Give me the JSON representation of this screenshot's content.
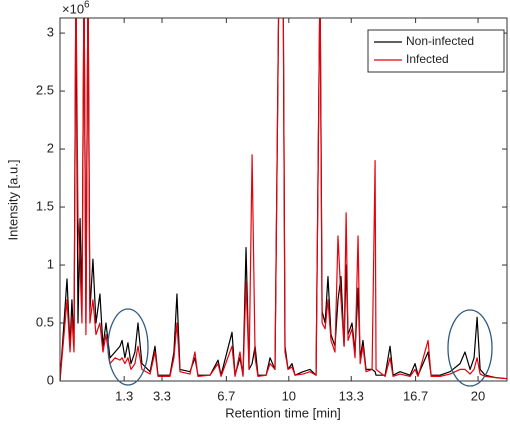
{
  "chart_data": {
    "type": "line",
    "x_label": "Retention time [min]",
    "y_label": "Intensity [a.u.]",
    "y_multiplier": {
      "base": "×10",
      "power": "6"
    },
    "xlim": [
      -2.09,
      21.53
    ],
    "ylim": [
      0,
      3.13
    ],
    "xticks": [
      1.3,
      3.3,
      6.7,
      10,
      13.3,
      16.7,
      20
    ],
    "yticks": [
      0,
      0.5,
      1,
      1.5,
      2,
      2.5,
      3
    ],
    "legend": "upper right",
    "x": [
      -2.09,
      -1.72,
      -1.56,
      -1.46,
      -1.35,
      -1.25,
      -1.14,
      -1.03,
      -0.93,
      -0.82,
      -0.72,
      -0.61,
      -0.51,
      -0.35,
      -0.19,
      0.02,
      0.18,
      0.34,
      0.55,
      0.82,
      1.08,
      1.19,
      1.34,
      1.5,
      1.66,
      1.87,
      2.03,
      2.24,
      2.67,
      2.93,
      3.09,
      3.72,
      3.93,
      4.09,
      4.25,
      4.78,
      5.04,
      5.2,
      5.84,
      6.26,
      6.42,
      7.0,
      7.16,
      7.42,
      7.58,
      7.74,
      7.9,
      8.06,
      8.22,
      8.37,
      8.8,
      9.01,
      9.27,
      9.48,
      9.7,
      9.8,
      9.96,
      10.17,
      10.33,
      10.75,
      11.12,
      11.44,
      11.65,
      11.76,
      11.92,
      12.07,
      12.23,
      12.44,
      12.6,
      12.76,
      12.92,
      13.03,
      13.13,
      13.34,
      13.5,
      13.66,
      13.77,
      13.92,
      14.08,
      14.4,
      14.56,
      14.61,
      15.09,
      15.35,
      15.51,
      15.88,
      16.41,
      16.67,
      16.83,
      17.36,
      17.52,
      17.99,
      18.52,
      19.05,
      19.31,
      19.58,
      19.79,
      19.95,
      20.11,
      20.37,
      20.9,
      21.53
    ],
    "series": [
      {
        "name": "Non-infected",
        "color": "#000000",
        "values": [
          0.0,
          0.88,
          0.3,
          0.7,
          0.3,
          3.5,
          0.5,
          1.4,
          0.6,
          3.5,
          0.5,
          3.5,
          0.6,
          1.05,
          0.5,
          0.75,
          0.3,
          0.5,
          0.2,
          0.25,
          0.3,
          0.35,
          0.2,
          0.33,
          0.15,
          0.25,
          0.5,
          0.15,
          0.08,
          0.3,
          0.05,
          0.05,
          0.25,
          0.75,
          0.1,
          0.08,
          0.2,
          0.05,
          0.05,
          0.18,
          0.05,
          0.42,
          0.05,
          0.2,
          0.05,
          1.15,
          0.1,
          0.15,
          0.3,
          0.05,
          0.05,
          0.2,
          0.1,
          3.5,
          3.5,
          0.3,
          0.1,
          0.15,
          0.05,
          0.08,
          0.1,
          0.05,
          3.5,
          0.6,
          0.5,
          0.9,
          0.4,
          0.3,
          0.7,
          0.9,
          0.3,
          1.0,
          0.4,
          0.5,
          0.25,
          0.8,
          0.2,
          0.35,
          0.1,
          0.1,
          0.08,
          0.05,
          0.05,
          0.3,
          0.05,
          0.08,
          0.05,
          0.15,
          0.05,
          0.25,
          0.05,
          0.05,
          0.08,
          0.15,
          0.25,
          0.1,
          0.2,
          0.55,
          0.1,
          0.05,
          0.03,
          0.02
        ]
      },
      {
        "name": "Infected",
        "color": "#e8000b",
        "values": [
          0.0,
          0.7,
          0.25,
          0.55,
          0.25,
          3.5,
          1.4,
          1.0,
          0.5,
          3.5,
          0.4,
          3.5,
          0.5,
          0.7,
          0.4,
          0.5,
          0.25,
          0.4,
          0.15,
          0.2,
          0.18,
          0.2,
          0.15,
          0.2,
          0.1,
          0.15,
          0.3,
          0.1,
          0.06,
          0.25,
          0.04,
          0.04,
          0.2,
          0.5,
          0.08,
          0.06,
          0.25,
          0.04,
          0.05,
          0.15,
          0.04,
          0.3,
          0.04,
          0.25,
          0.04,
          0.85,
          0.1,
          1.95,
          0.2,
          0.04,
          0.05,
          0.15,
          0.1,
          3.5,
          3.5,
          0.25,
          0.1,
          0.12,
          0.05,
          0.06,
          0.08,
          0.05,
          3.5,
          0.5,
          0.45,
          0.7,
          0.35,
          0.25,
          1.25,
          0.7,
          0.3,
          1.45,
          0.35,
          0.45,
          0.2,
          1.25,
          0.15,
          0.3,
          0.08,
          0.1,
          1.9,
          0.1,
          0.04,
          0.2,
          0.04,
          0.06,
          0.04,
          0.1,
          0.04,
          0.35,
          0.04,
          0.04,
          0.06,
          0.1,
          0.1,
          0.06,
          0.1,
          0.2,
          0.06,
          0.04,
          0.03,
          0.02
        ]
      }
    ]
  }
}
